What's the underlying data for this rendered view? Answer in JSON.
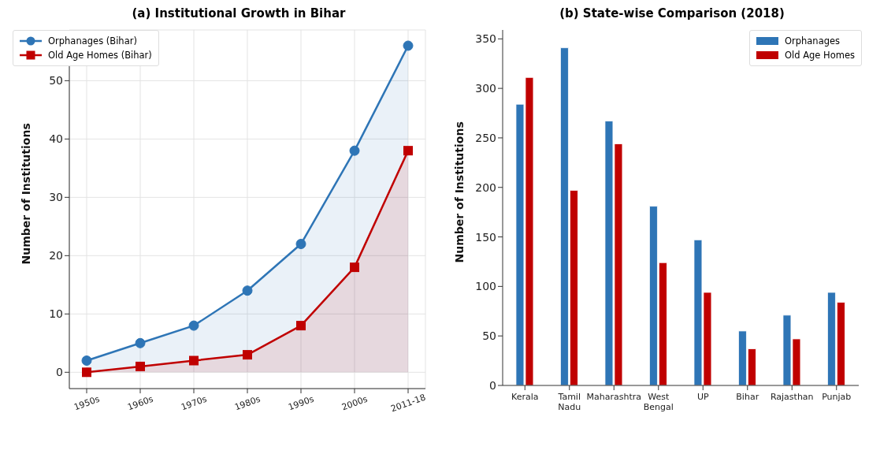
{
  "chart_data": [
    {
      "type": "area",
      "title": "(a) Institutional Growth in Bihar",
      "ylabel": "Number of Institutions",
      "categories": [
        "1950s",
        "1960s",
        "1970s",
        "1980s",
        "1990s",
        "2000s",
        "2011-18"
      ],
      "series": [
        {
          "name": "Orphanages (Bihar)",
          "color": "#2e75b6",
          "marker": "circle",
          "values": [
            2,
            5,
            8,
            14,
            22,
            38,
            56
          ]
        },
        {
          "name": "Old Age Homes (Bihar)",
          "color": "#c00000",
          "marker": "square",
          "values": [
            0,
            1,
            2,
            3,
            8,
            18,
            38
          ]
        }
      ],
      "ylim": [
        -2.8,
        58.7
      ],
      "yticks": [
        0,
        10,
        20,
        30,
        40,
        50
      ],
      "grid": true,
      "legend": "top left"
    },
    {
      "type": "bar",
      "title": "(b) State-wise Comparison (2018)",
      "ylabel": "Number of Institutions",
      "categories": [
        "Kerala",
        "Tamil Nadu",
        "Maharashtra",
        "West Bengal",
        "UP",
        "Bihar",
        "Rajasthan",
        "Punjab"
      ],
      "series": [
        {
          "name": "Orphanages",
          "color": "#2e75b6",
          "values": [
            284,
            341,
            267,
            181,
            147,
            55,
            71,
            94
          ]
        },
        {
          "name": "Old Age Homes",
          "color": "#c00000",
          "values": [
            311,
            197,
            244,
            124,
            94,
            37,
            47,
            84
          ]
        }
      ],
      "ylim": [
        0,
        359
      ],
      "yticks": [
        0,
        50,
        100,
        150,
        200,
        250,
        300,
        350
      ],
      "grid": false,
      "legend": "top right"
    }
  ]
}
